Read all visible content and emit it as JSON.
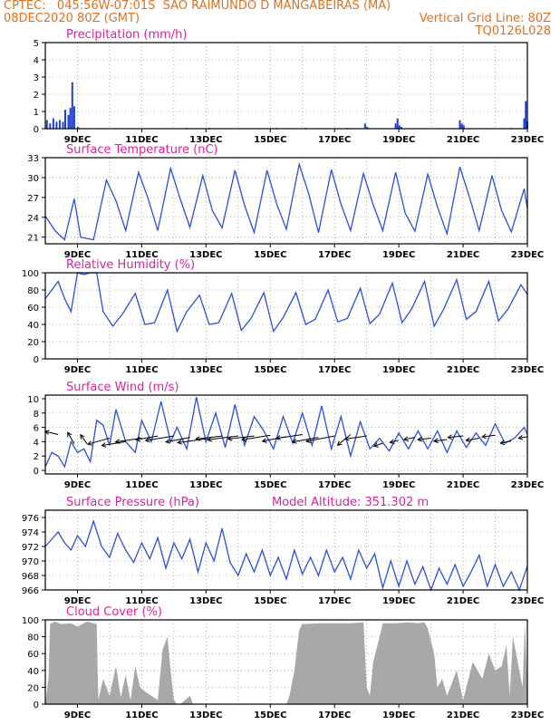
{
  "header": {
    "line1_left": "CPTEC:   045:56W-07:01S  SAO RAIMUNDO D MANGABEIRAS (MA)",
    "line2_left": "08DEC2020 80Z (GMT)",
    "line2_right": "Vertical Grid Line: 80Z",
    "line3_right": "TQ0126L028"
  },
  "colors": {
    "header": "#e07020",
    "title": "#e0209a",
    "line": "#2a4fe0",
    "bar": "#1f3fe0",
    "cloud": "#a8a8a8",
    "vector": "#000000"
  },
  "chart_data": [
    {
      "type": "bar",
      "title": "Precipitation (mm/h)",
      "x_ticks": [
        "9DEC",
        "11DEC",
        "13DEC",
        "15DEC",
        "17DEC",
        "19DEC",
        "21DEC",
        "23DEC"
      ],
      "x_range_days": [
        8.0,
        23.0
      ],
      "ylim": [
        0,
        5
      ],
      "y_ticks": [
        0,
        1,
        2,
        3,
        4,
        5
      ],
      "grid": true,
      "x": [
        8.05,
        8.15,
        8.25,
        8.35,
        8.45,
        8.55,
        8.62,
        8.72,
        8.78,
        8.84,
        8.9,
        9.02,
        12.4,
        13.1,
        15.2,
        16.1,
        17.4,
        17.95,
        18.02,
        18.9,
        18.96,
        19.02,
        19.08,
        20.9,
        20.96,
        21.02,
        22.5,
        22.9,
        22.95,
        23.0
      ],
      "values": [
        0.5,
        0.3,
        0.6,
        0.4,
        0.5,
        0.4,
        1.1,
        0.8,
        1.2,
        2.7,
        1.3,
        0.1,
        0.05,
        0.05,
        0.05,
        0.05,
        0.05,
        0.3,
        0.1,
        0.3,
        0.6,
        0.2,
        0.1,
        0.5,
        0.3,
        0.2,
        0.05,
        0.6,
        1.6,
        0.4
      ]
    },
    {
      "type": "line",
      "title": "Surface Temperature (nC)",
      "x_ticks": [
        "9DEC",
        "11DEC",
        "13DEC",
        "15DEC",
        "17DEC",
        "19DEC",
        "21DEC",
        "23DEC"
      ],
      "x_range_days": [
        8.0,
        23.0
      ],
      "ylim": [
        20,
        33
      ],
      "y_ticks": [
        21,
        24,
        27,
        30,
        33
      ],
      "grid": true,
      "x": [
        8.0,
        8.3,
        8.6,
        8.9,
        9.1,
        9.5,
        9.9,
        10.2,
        10.5,
        10.9,
        11.2,
        11.5,
        11.9,
        12.2,
        12.5,
        12.9,
        13.2,
        13.5,
        13.9,
        14.2,
        14.5,
        14.9,
        15.2,
        15.5,
        15.9,
        16.2,
        16.5,
        16.9,
        17.2,
        17.5,
        17.9,
        18.2,
        18.5,
        18.9,
        19.2,
        19.5,
        19.9,
        20.2,
        20.5,
        20.9,
        21.2,
        21.5,
        21.9,
        22.2,
        22.5,
        22.9,
        23.0
      ],
      "values": [
        24.2,
        22.0,
        20.6,
        26.8,
        21.0,
        20.6,
        29.6,
        26.5,
        22.0,
        30.8,
        26.8,
        22.0,
        31.4,
        26.7,
        22.5,
        30.3,
        25.0,
        22.4,
        31.1,
        25.8,
        21.7,
        31.1,
        26.0,
        22.2,
        32.0,
        27.5,
        21.7,
        31.2,
        26.0,
        22.0,
        30.6,
        25.9,
        22.0,
        30.8,
        24.6,
        21.9,
        30.5,
        25.6,
        21.5,
        31.6,
        27.0,
        22.0,
        30.3,
        25.0,
        21.8,
        28.3,
        25.3
      ]
    },
    {
      "type": "line",
      "title": "Relative Humidity (%)",
      "x_ticks": [
        "9DEC",
        "11DEC",
        "13DEC",
        "15DEC",
        "17DEC",
        "19DEC",
        "21DEC",
        "23DEC"
      ],
      "x_range_days": [
        8.0,
        23.0
      ],
      "ylim": [
        0,
        100
      ],
      "y_ticks": [
        0,
        20,
        40,
        60,
        80,
        100
      ],
      "grid": true,
      "x": [
        8.0,
        8.2,
        8.4,
        8.6,
        8.8,
        9.0,
        9.2,
        9.4,
        9.6,
        9.8,
        10.1,
        10.4,
        10.8,
        11.1,
        11.4,
        11.8,
        12.1,
        12.4,
        12.8,
        13.1,
        13.4,
        13.8,
        14.1,
        14.4,
        14.8,
        15.1,
        15.4,
        15.8,
        16.1,
        16.4,
        16.8,
        17.1,
        17.4,
        17.8,
        18.1,
        18.4,
        18.8,
        19.1,
        19.4,
        19.8,
        20.1,
        20.4,
        20.8,
        21.1,
        21.4,
        21.8,
        22.1,
        22.4,
        22.8,
        23.0
      ],
      "values": [
        70,
        80,
        90,
        70,
        55,
        100,
        98,
        100,
        100,
        55,
        38,
        52,
        76,
        40,
        42,
        80,
        32,
        55,
        74,
        40,
        42,
        76,
        33,
        47,
        77,
        32,
        48,
        77,
        40,
        46,
        80,
        43,
        47,
        82,
        41,
        52,
        88,
        42,
        58,
        90,
        38,
        58,
        92,
        46,
        55,
        90,
        44,
        58,
        86,
        75
      ]
    },
    {
      "type": "line",
      "title": "Surface Wind (m/s)",
      "x_ticks": [
        "9DEC",
        "11DEC",
        "13DEC",
        "15DEC",
        "17DEC",
        "19DEC",
        "21DEC",
        "23DEC"
      ],
      "x_range_days": [
        8.0,
        23.0
      ],
      "ylim": [
        -0.5,
        10.5
      ],
      "y_ticks": [
        0,
        2,
        4,
        6,
        8,
        10
      ],
      "grid": true,
      "x": [
        8.0,
        8.2,
        8.4,
        8.6,
        8.8,
        9.0,
        9.2,
        9.4,
        9.6,
        9.8,
        10.0,
        10.2,
        10.5,
        10.8,
        11.0,
        11.3,
        11.6,
        11.9,
        12.1,
        12.4,
        12.7,
        13.0,
        13.3,
        13.6,
        13.9,
        14.2,
        14.5,
        14.8,
        15.1,
        15.4,
        15.7,
        16.0,
        16.3,
        16.6,
        16.9,
        17.2,
        17.5,
        17.8,
        18.1,
        18.4,
        18.7,
        19.0,
        19.3,
        19.6,
        19.9,
        20.2,
        20.5,
        20.8,
        21.1,
        21.4,
        21.7,
        22.0,
        22.3,
        22.6,
        22.9,
        23.0
      ],
      "values": [
        0.5,
        2.5,
        2.0,
        0.5,
        4.0,
        2.5,
        3.0,
        1.2,
        7.0,
        6.3,
        3.5,
        8.5,
        4.0,
        2.5,
        7.0,
        4.0,
        9.6,
        4.0,
        6.0,
        3.0,
        10.2,
        4.0,
        8.0,
        3.2,
        9.2,
        3.5,
        7.5,
        5.5,
        3.0,
        7.5,
        3.8,
        8.0,
        3.5,
        9.0,
        3.0,
        7.5,
        2.0,
        6.8,
        3.0,
        4.5,
        2.7,
        5.2,
        3.0,
        5.5,
        3.0,
        5.5,
        2.5,
        5.5,
        3.2,
        5.2,
        3.5,
        6.5,
        3.8,
        4.5,
        6.0,
        5.0
      ],
      "vectors_x": [
        8.4,
        8.9,
        9.3,
        10.0,
        10.5,
        11.0,
        11.5,
        12.0,
        12.5,
        13.0,
        13.5,
        14.0,
        14.5,
        15.0,
        15.5,
        16.0,
        16.5,
        17.0,
        17.5,
        18.0,
        18.5,
        19.0,
        19.5,
        20.0,
        20.5,
        21.0,
        21.5,
        22.0,
        22.5,
        23.0
      ],
      "vectors_y": [
        5.0,
        3.7,
        3.7,
        4.5,
        4.0,
        4.5,
        4.8,
        4.8,
        4.6,
        4.4,
        4.8,
        4.8,
        4.8,
        4.9,
        4.7,
        5.0,
        4.6,
        4.8,
        5.0,
        4.8,
        3.8,
        4.2,
        4.6,
        4.5,
        4.3,
        4.8,
        4.5,
        4.9,
        4.1,
        4.7
      ],
      "vectors_dx": [
        -0.6,
        -0.3,
        -0.3,
        -1.0,
        -1.1,
        -1.2,
        -1.0,
        -1.3,
        -1.1,
        -1.3,
        -1.2,
        -1.4,
        -1.2,
        -1.3,
        -1.1,
        -1.2,
        -1.2,
        -1.3,
        -0.6,
        -1.0,
        -0.4,
        -0.4,
        -0.5,
        -0.6,
        -0.6,
        -0.7,
        -0.6,
        -0.6,
        -0.5,
        -0.4
      ],
      "vectors_dy": [
        0.4,
        1.5,
        1.2,
        -0.8,
        -0.5,
        -0.5,
        -0.5,
        -0.6,
        -0.6,
        -0.5,
        -0.4,
        -0.5,
        -0.4,
        -0.6,
        -0.6,
        -0.5,
        -0.6,
        -0.7,
        -1.4,
        -0.4,
        -0.4,
        -0.3,
        -0.3,
        -0.2,
        -0.2,
        -0.2,
        -0.3,
        -0.2,
        -0.3,
        -0.2
      ]
    },
    {
      "type": "line",
      "title": "Surface Pressure (hPa)",
      "annotation": "Model Altitude: 351.302 m",
      "x_ticks": [
        "9DEC",
        "11DEC",
        "13DEC",
        "15DEC",
        "17DEC",
        "19DEC",
        "21DEC",
        "23DEC"
      ],
      "x_range_days": [
        8.0,
        23.0
      ],
      "ylim": [
        966,
        977
      ],
      "y_ticks": [
        966,
        968,
        970,
        972,
        974,
        976
      ],
      "grid": true,
      "x": [
        8.0,
        8.2,
        8.4,
        8.6,
        8.8,
        9.0,
        9.25,
        9.5,
        9.75,
        10.0,
        10.25,
        10.5,
        10.75,
        11.0,
        11.25,
        11.5,
        11.75,
        12.0,
        12.25,
        12.5,
        12.75,
        13.0,
        13.25,
        13.5,
        13.75,
        14.0,
        14.25,
        14.5,
        14.75,
        15.0,
        15.25,
        15.5,
        15.75,
        16.0,
        16.25,
        16.5,
        16.75,
        17.0,
        17.25,
        17.5,
        17.75,
        18.0,
        18.25,
        18.5,
        18.75,
        19.0,
        19.25,
        19.5,
        19.75,
        20.0,
        20.25,
        20.5,
        20.75,
        21.0,
        21.25,
        21.5,
        21.75,
        22.0,
        22.25,
        22.5,
        22.75,
        23.0
      ],
      "values": [
        972.0,
        973.0,
        974.0,
        972.5,
        971.5,
        973.5,
        972.0,
        975.5,
        972.0,
        970.5,
        973.8,
        971.5,
        969.8,
        972.5,
        970.3,
        973.2,
        969.0,
        972.5,
        970.3,
        973.0,
        968.5,
        972.5,
        970.0,
        974.5,
        969.8,
        968.0,
        971.0,
        968.5,
        971.5,
        968.0,
        970.5,
        967.5,
        971.5,
        968.2,
        970.5,
        968.0,
        971.5,
        968.5,
        970.5,
        967.5,
        971.5,
        969.0,
        971.0,
        966.3,
        970.0,
        966.5,
        970.0,
        966.8,
        969.2,
        966.0,
        969.0,
        966.8,
        969.5,
        966.5,
        968.5,
        970.8,
        966.5,
        969.5,
        966.5,
        968.5,
        966.0,
        969.3
      ]
    },
    {
      "type": "area",
      "title": "Cloud Cover (%)",
      "x_ticks": [
        "9DEC",
        "11DEC",
        "13DEC",
        "15DEC",
        "17DEC",
        "19DEC",
        "21DEC",
        "23DEC"
      ],
      "x_range_days": [
        8.0,
        23.0
      ],
      "ylim": [
        0,
        100
      ],
      "y_ticks": [
        0,
        20,
        40,
        60,
        80,
        100
      ],
      "grid": true,
      "x": [
        8.0,
        8.1,
        8.15,
        8.3,
        8.5,
        8.8,
        9.0,
        9.3,
        9.6,
        9.65,
        9.8,
        9.9,
        10.0,
        10.2,
        10.35,
        10.5,
        10.65,
        10.8,
        10.95,
        11.1,
        11.3,
        11.5,
        11.65,
        11.8,
        11.9,
        12.0,
        12.1,
        12.2,
        12.5,
        12.6,
        12.8,
        13.5,
        14.5,
        15.0,
        15.5,
        15.6,
        15.75,
        15.9,
        16.0,
        16.6,
        17.0,
        17.5,
        17.9,
        18.0,
        18.1,
        18.2,
        18.4,
        18.5,
        18.6,
        18.9,
        19.3,
        19.6,
        19.8,
        19.9,
        20.1,
        20.2,
        20.35,
        20.5,
        20.8,
        21.0,
        21.3,
        21.6,
        21.8,
        22.0,
        22.2,
        22.35,
        22.45,
        22.55,
        22.7,
        22.85,
        22.92,
        23.0
      ],
      "values": [
        0,
        30,
        95,
        98,
        95,
        96,
        92,
        98,
        95,
        5,
        30,
        20,
        10,
        45,
        8,
        35,
        5,
        45,
        20,
        15,
        10,
        5,
        65,
        80,
        40,
        5,
        0,
        0,
        10,
        0,
        0,
        0,
        0,
        0,
        0,
        10,
        40,
        88,
        95,
        96,
        96,
        96,
        97,
        20,
        10,
        50,
        80,
        96,
        96,
        96,
        97,
        96,
        97,
        90,
        60,
        20,
        30,
        10,
        40,
        5,
        50,
        30,
        60,
        40,
        45,
        70,
        10,
        80,
        50,
        20,
        97,
        20
      ]
    }
  ]
}
